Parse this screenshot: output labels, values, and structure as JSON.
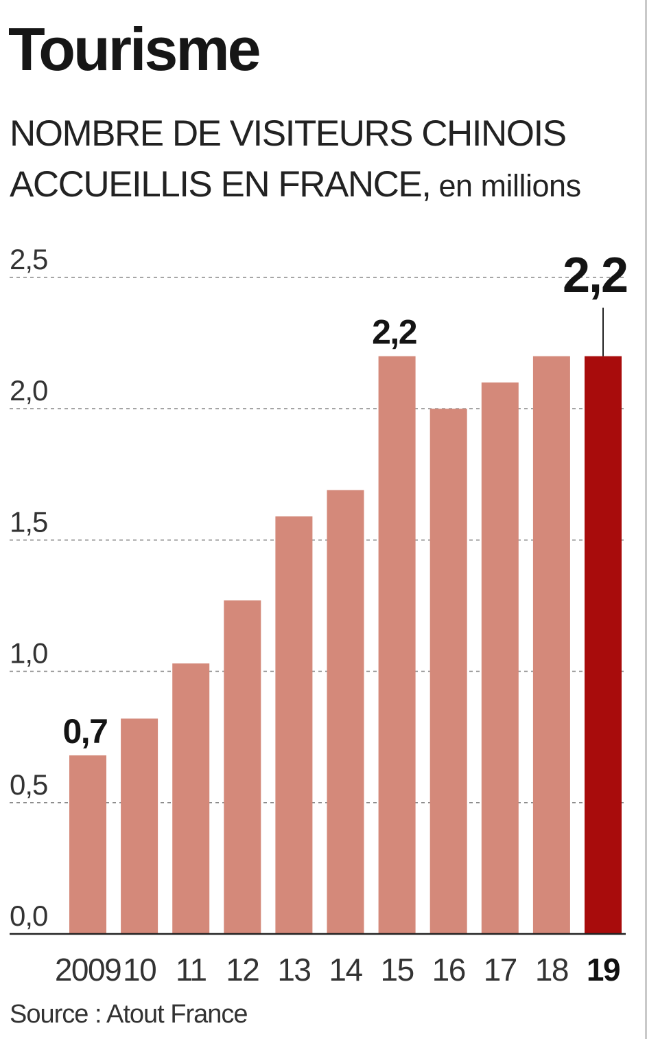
{
  "header": {
    "title": "Tourisme",
    "subtitle": "NOMBRE DE VISITEURS CHINOIS ACCUEILLIS EN FRANCE,",
    "unit": " en millions"
  },
  "footer": {
    "source": "Source : Atout France"
  },
  "colors": {
    "bar": "#d4897a",
    "highlight": "#a80c0c",
    "grid": "#888888",
    "axis": "#222222"
  },
  "chart_data": {
    "type": "bar",
    "title": "NOMBRE DE VISITEURS CHINOIS ACCUEILLIS EN FRANCE, en millions",
    "categories": [
      "2009",
      "10",
      "11",
      "12",
      "13",
      "14",
      "15",
      "16",
      "17",
      "18",
      "19"
    ],
    "values": [
      0.68,
      0.82,
      1.03,
      1.27,
      1.59,
      1.69,
      2.2,
      2.0,
      2.1,
      2.2,
      2.2
    ],
    "highlight_index": 10,
    "ylim": [
      0,
      2.5
    ],
    "yticks": [
      0,
      0.5,
      1.0,
      1.5,
      2.0,
      2.5
    ],
    "ytick_labels": [
      "0,0",
      "0,5",
      "1,0",
      "1,5",
      "2,0",
      "2,5"
    ],
    "data_labels": [
      {
        "index": 0,
        "text": "0,7"
      },
      {
        "index": 6,
        "text": "2,2"
      },
      {
        "index": 10,
        "text": "2,2"
      }
    ],
    "xlabel": "",
    "ylabel": "",
    "grid": true
  }
}
